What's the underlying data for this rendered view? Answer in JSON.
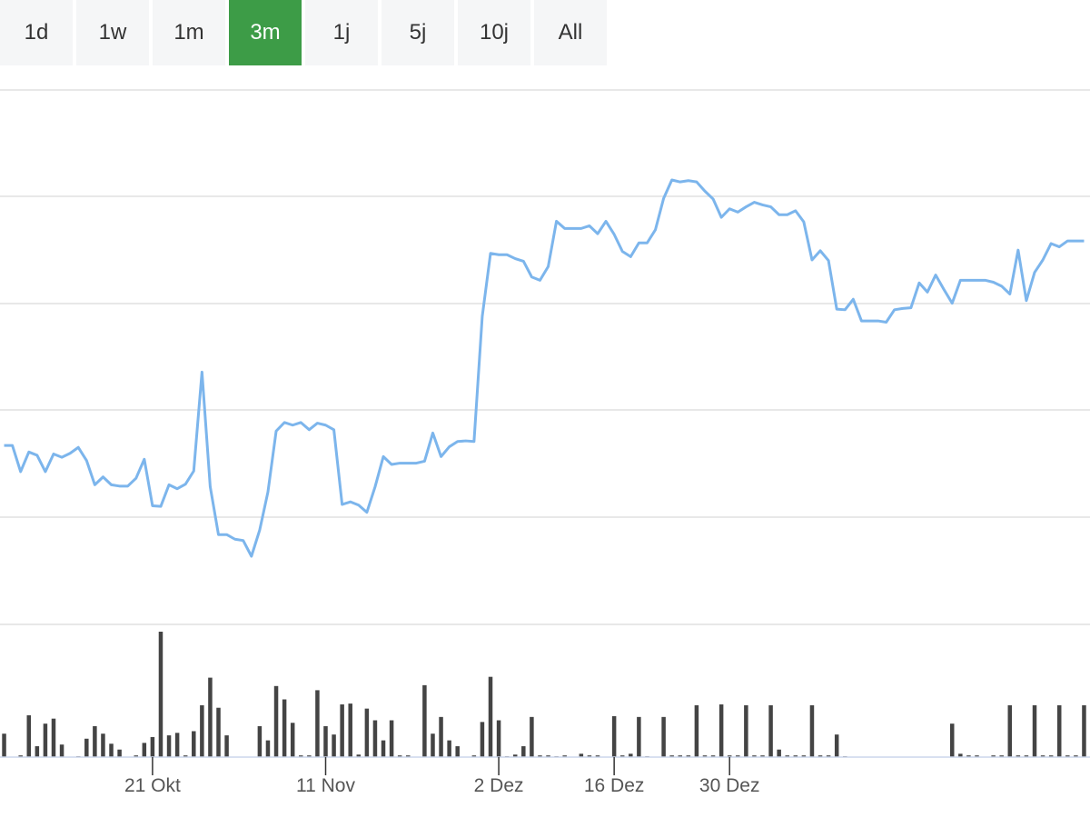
{
  "range_selector": {
    "buttons": [
      {
        "label": "1d"
      },
      {
        "label": "1w"
      },
      {
        "label": "1m"
      },
      {
        "label": "3m"
      },
      {
        "label": "1j"
      },
      {
        "label": "5j"
      },
      {
        "label": "10j"
      },
      {
        "label": "All"
      }
    ],
    "active_index": 3,
    "active_color": "#3d9c47"
  },
  "chart_data": {
    "type": "line",
    "title": "",
    "xlabel": "",
    "ylabel": "",
    "x_tick_labels": [
      "21 Okt",
      "11 Nov",
      "2 Dez",
      "16 Dez",
      "30 Dez"
    ],
    "x_ticks_day_index": [
      18,
      39,
      60,
      74,
      88
    ],
    "grid": "horizontal",
    "legend": "none",
    "y_axis_labels_shown": false,
    "line_color": "#7cb5ec",
    "volume_color": "#444444",
    "series": [
      {
        "values": [
          60.5,
          60.5,
          56.5,
          59.5,
          59,
          56.5,
          59.2,
          58.7,
          59.3,
          60.2,
          58.2,
          54.5,
          55.7,
          54.5,
          54.3,
          54.3,
          55.5,
          58.4,
          51.3,
          51.2,
          54.5,
          53.9,
          54.6,
          56.6,
          71.7,
          54.2,
          46.9,
          46.9,
          46.2,
          46,
          43.6,
          47.6,
          53.4,
          62.7,
          64,
          63.6,
          64,
          62.9,
          63.9,
          63.6,
          62.9,
          51.5,
          51.9,
          51.4,
          50.3,
          54.2,
          58.8,
          57.6,
          57.8,
          57.8,
          57.8,
          58.1,
          62.4,
          58.8,
          60.3,
          61.1,
          61.2,
          61.1,
          80.2,
          89.8,
          89.6,
          89.6,
          89,
          88.6,
          86.2,
          85.7,
          87.8,
          94.7,
          93.6,
          93.6,
          93.6,
          94,
          92.8,
          94.7,
          92.7,
          90.1,
          89.3,
          91.4,
          91.4,
          93.4,
          98.2,
          101,
          100.7,
          100.9,
          100.7,
          99.3,
          98.1,
          95.3,
          96.6,
          96.1,
          96.9,
          97.6,
          97.2,
          96.9,
          95.7,
          95.7,
          96.3,
          94.6,
          88.8,
          90.2,
          88.7,
          81.3,
          81.2,
          82.8,
          79.5,
          79.5,
          79.5,
          79.3,
          81.2,
          81.4,
          81.5,
          85.3,
          83.9,
          86.5,
          84.3,
          82.2,
          85.7,
          85.7,
          85.7,
          85.7,
          85.4,
          84.8,
          83.6,
          90.3,
          82.6,
          86.9,
          88.8,
          91.3,
          90.8,
          91.7,
          91.7,
          91.7
        ]
      },
      {
        "name": "Volume",
        "values": [
          28,
          0,
          2,
          50,
          13,
          40,
          46,
          15,
          0,
          1,
          22,
          37,
          28,
          16,
          9,
          0,
          2,
          17,
          24,
          150,
          26,
          29,
          2,
          31,
          62,
          95,
          59,
          26,
          0,
          0,
          0,
          37,
          20,
          85,
          69,
          41,
          2,
          2,
          80,
          37,
          27,
          63,
          64,
          3,
          58,
          44,
          20,
          44,
          2,
          2,
          0,
          86,
          28,
          48,
          20,
          13,
          0,
          2,
          42,
          96,
          44,
          1,
          3,
          13,
          48,
          2,
          2,
          1,
          2,
          0,
          4,
          2,
          2,
          0,
          49,
          2,
          4,
          48,
          1,
          0,
          48,
          2,
          2,
          2,
          62,
          2,
          2,
          63,
          2,
          2,
          62,
          2,
          2,
          62,
          9,
          2,
          2,
          2,
          62,
          2,
          2,
          27,
          1,
          0,
          0,
          0,
          0,
          0,
          0,
          0,
          0,
          0,
          0,
          0,
          0,
          40,
          4,
          2,
          2,
          0,
          2,
          2,
          62,
          2,
          2,
          62,
          2,
          2,
          62,
          2,
          2,
          62,
          2
        ]
      }
    ],
    "y_gridlines": 6
  }
}
